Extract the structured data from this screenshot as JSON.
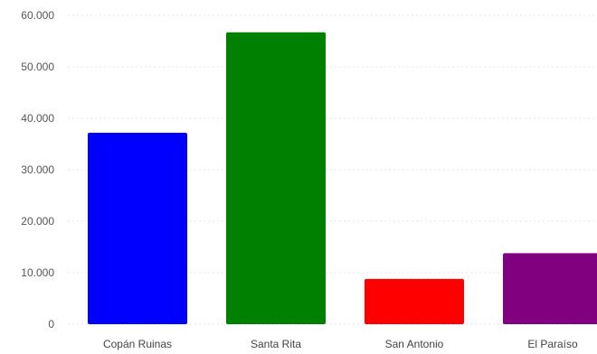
{
  "chart_data": {
    "type": "bar",
    "categories": [
      "Copán Ruinas",
      "Santa Rita",
      "San Antonio",
      "El Paraíso"
    ],
    "values": [
      37200,
      56700,
      8800,
      13800
    ],
    "colors": [
      "#0000ff",
      "#008000",
      "#ff0000",
      "#800080"
    ],
    "ylim": [
      0,
      60000
    ],
    "yticks": [
      0,
      10000,
      20000,
      30000,
      40000,
      50000,
      60000
    ],
    "ytick_labels": [
      "0",
      "10.000",
      "20.000",
      "30.000",
      "40.000",
      "50.000",
      "60.000"
    ],
    "grid": true,
    "legend": "none"
  }
}
